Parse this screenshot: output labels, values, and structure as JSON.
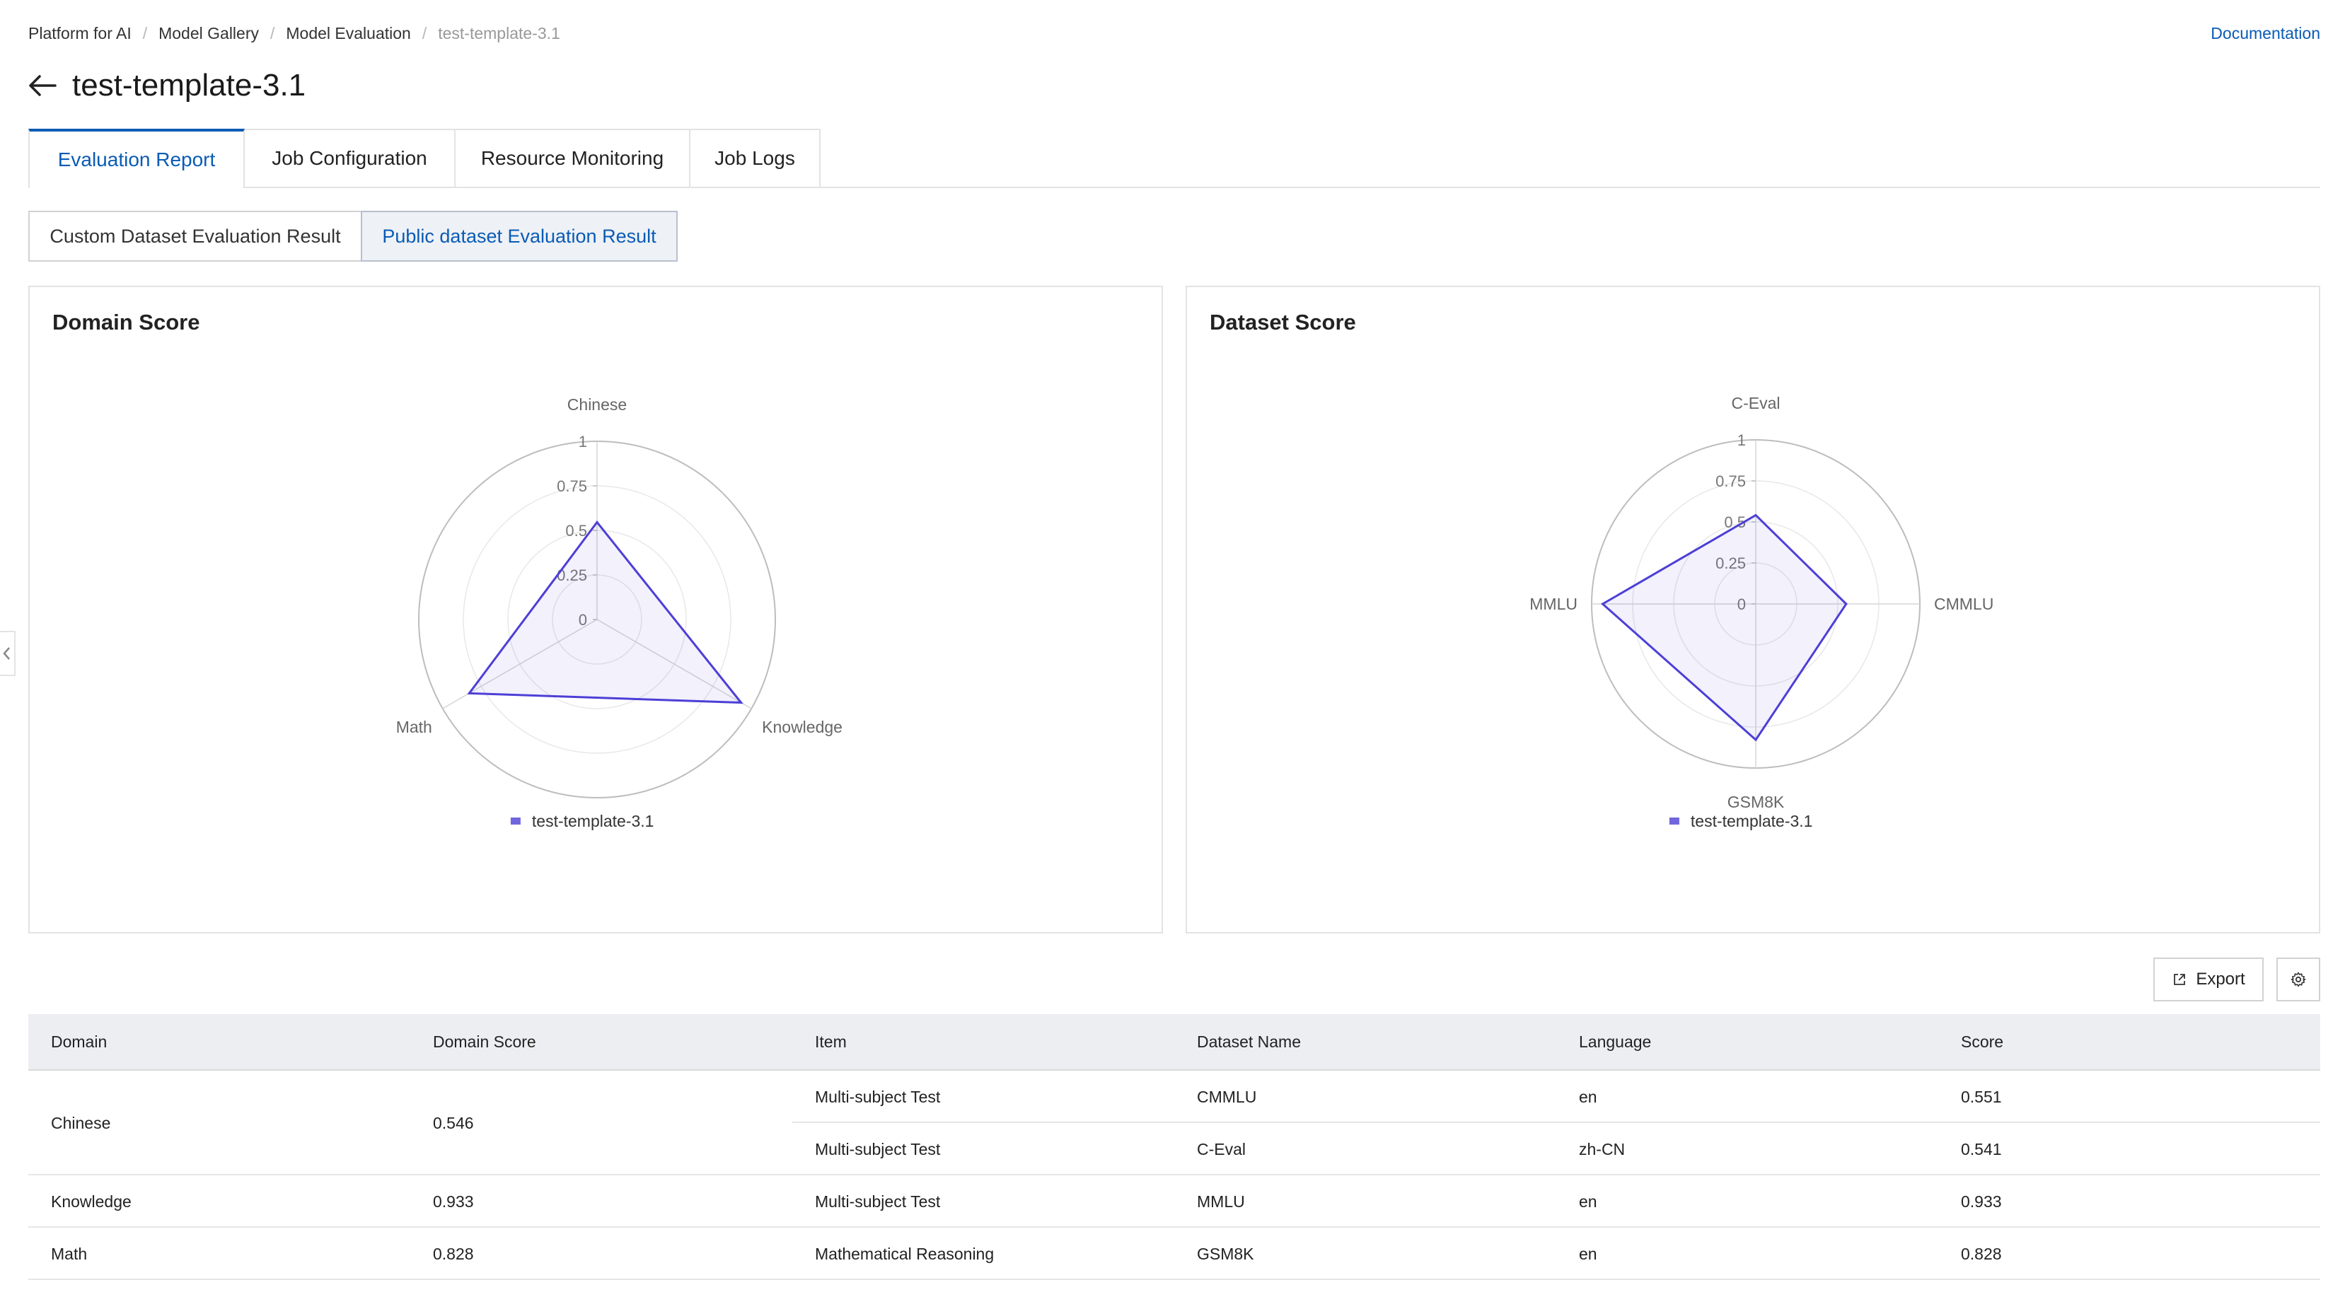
{
  "breadcrumb": [
    "Platform for AI",
    "Model Gallery",
    "Model Evaluation",
    "test-template-3.1"
  ],
  "documentation_link": "Documentation",
  "page_title": "test-template-3.1",
  "tabs": [
    "Evaluation Report",
    "Job Configuration",
    "Resource Monitoring",
    "Job Logs"
  ],
  "active_tab": "Evaluation Report",
  "result_switch": {
    "options": [
      "Custom Dataset Evaluation Result",
      "Public dataset Evaluation Result"
    ],
    "selected": "Public dataset Evaluation Result"
  },
  "domain_card": {
    "title": "Domain Score"
  },
  "dataset_card": {
    "title": "Dataset Score"
  },
  "toolbar": {
    "export_label": "Export"
  },
  "table": {
    "columns": [
      "Domain",
      "Domain Score",
      "Item",
      "Dataset Name",
      "Language",
      "Score"
    ],
    "groups": [
      {
        "domain": "Chinese",
        "domain_score": "0.546",
        "rows": [
          {
            "item": "Multi-subject Test",
            "dataset": "CMMLU",
            "language": "en",
            "score": "0.551"
          },
          {
            "item": "Multi-subject Test",
            "dataset": "C-Eval",
            "language": "zh-CN",
            "score": "0.541"
          }
        ]
      },
      {
        "domain": "Knowledge",
        "domain_score": "0.933",
        "rows": [
          {
            "item": "Multi-subject Test",
            "dataset": "MMLU",
            "language": "en",
            "score": "0.933"
          }
        ]
      },
      {
        "domain": "Math",
        "domain_score": "0.828",
        "rows": [
          {
            "item": "Mathematical Reasoning",
            "dataset": "GSM8K",
            "language": "en",
            "score": "0.828"
          }
        ]
      }
    ]
  },
  "chart_data": [
    {
      "type": "radar",
      "title": "Domain Score",
      "indicators": [
        "Chinese",
        "Knowledge",
        "Math"
      ],
      "radial_ticks": [
        "0",
        "0.25",
        "0.5",
        "0.75",
        "1"
      ],
      "range": [
        0,
        1
      ],
      "series": [
        {
          "name": "test-template-3.1",
          "values": [
            0.546,
            0.933,
            0.828
          ]
        }
      ],
      "legend_position": "bottom",
      "color": "#4d3fd6"
    },
    {
      "type": "radar",
      "title": "Dataset Score",
      "indicators": [
        "C-Eval",
        "CMMLU",
        "GSM8K",
        "MMLU"
      ],
      "radial_ticks": [
        "0",
        "0.25",
        "0.5",
        "0.75",
        "1"
      ],
      "range": [
        0,
        1
      ],
      "series": [
        {
          "name": "test-template-3.1",
          "values": [
            0.541,
            0.551,
            0.828,
            0.933
          ]
        }
      ],
      "legend_position": "bottom",
      "color": "#4d3fd6"
    }
  ]
}
